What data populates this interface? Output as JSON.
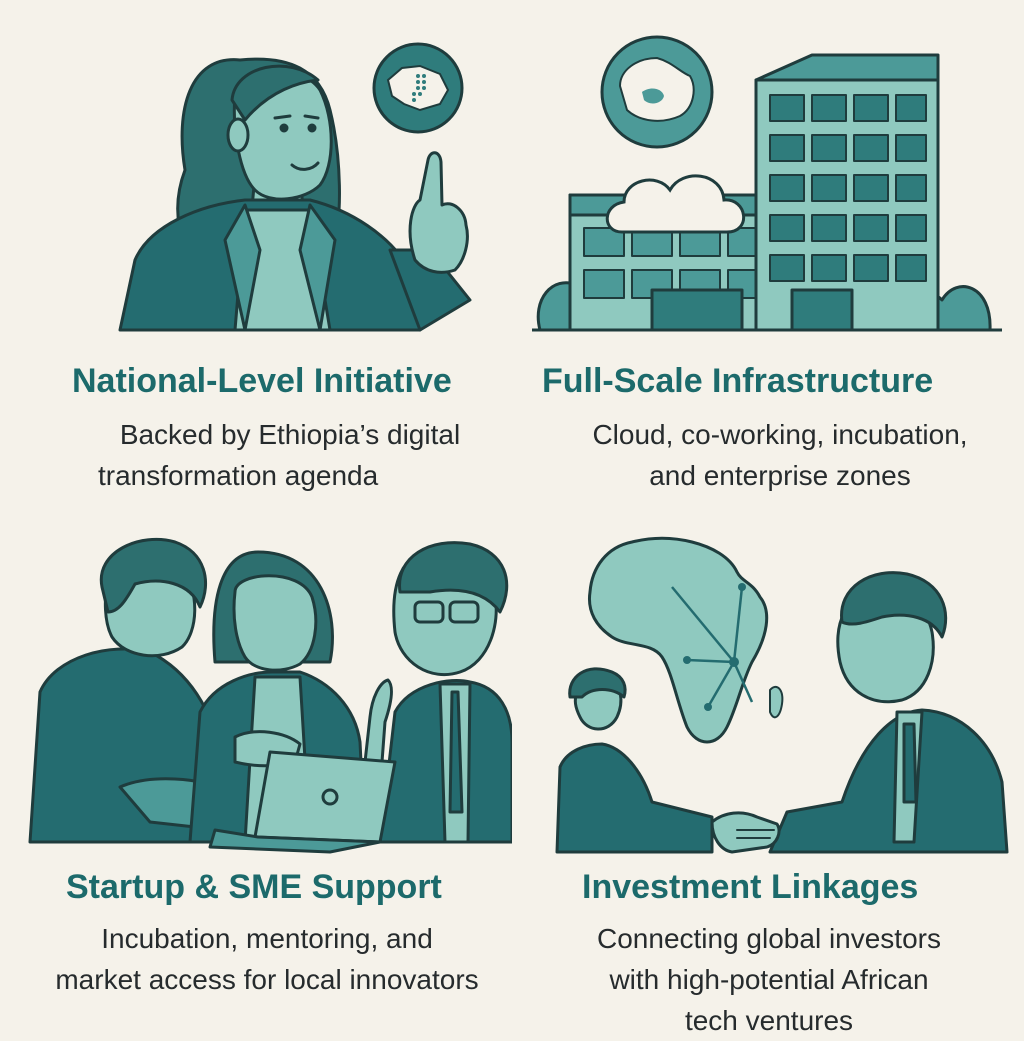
{
  "colors": {
    "background": "#f5f2ea",
    "teal_dark": "#246c70",
    "teal_mid": "#4c9a98",
    "teal_light": "#8fc9bf",
    "outline": "#1f3c3d",
    "title": "#1c6a6b",
    "text": "#262b2d"
  },
  "panels": [
    {
      "title": "National-Level Initiative",
      "desc_lines": [
        "Backed by Ethiopia’s digital",
        "transformation agenda"
      ],
      "icons": [
        "woman-presenter-icon",
        "ethiopia-map-icon"
      ]
    },
    {
      "title": "Full-Scale Infrastructure",
      "desc_lines": [
        "Cloud, co-working, incubation,",
        "and enterprise zones"
      ],
      "icons": [
        "office-buildings-icon",
        "cloud-icon",
        "ethiopia-map-icon"
      ]
    },
    {
      "title": "Startup & SME Support",
      "desc_lines": [
        "Incubation, mentoring, and",
        "market access for local innovators"
      ],
      "icons": [
        "team-meeting-icon",
        "laptop-icon"
      ]
    },
    {
      "title": "Investment Linkages",
      "desc_lines": [
        "Connecting global investors",
        "with high-potential African",
        "tech ventures"
      ],
      "icons": [
        "africa-map-icon",
        "handshake-icon"
      ]
    }
  ]
}
